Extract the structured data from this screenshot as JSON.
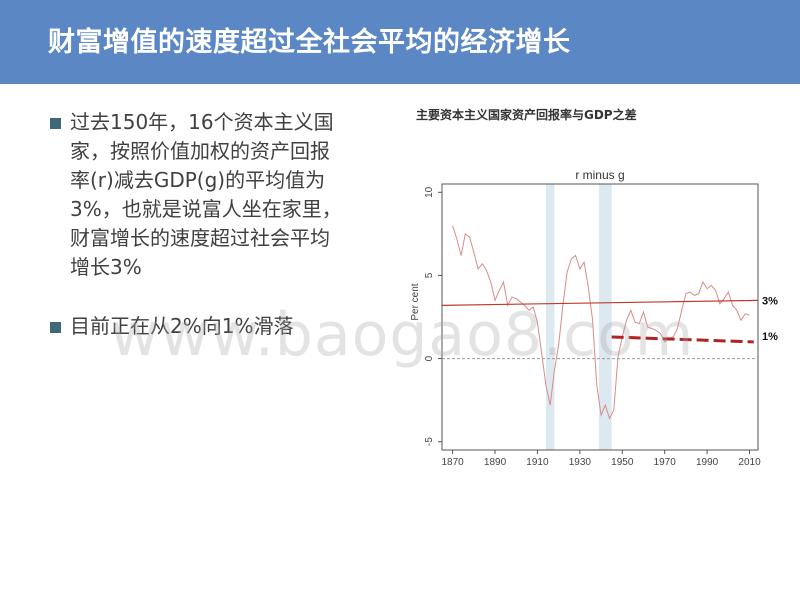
{
  "header": {
    "title": "财富增值的速度超过全社会平均的经济增长"
  },
  "bullets": [
    {
      "text": "过去150年，16个资本主义国\n家，按照价值加权的资产回报\n率(r)减去GDP(g)的平均值为\n3%，也就是说富人坐在家里，\n财富增长的速度超过社会平均\n增长3%"
    },
    {
      "text": "目前正在从2%向1%滑落"
    }
  ],
  "figure_caption": "主要资本主义国家资产回报率与GDP之差",
  "watermark": "www.baogao8.com",
  "colors": {
    "header_bg": "#5b87c5",
    "bullet_marker": "#3f6878",
    "series_line": "#d98b8b",
    "trend_line": "#c0392b",
    "forecast_line": "#b22222",
    "shaded_band": "#dde9f0"
  },
  "chart_data": {
    "type": "line",
    "title": "r minus g",
    "xlabel": "",
    "ylabel": "Per cent",
    "xlim": [
      1865,
      2014
    ],
    "ylim": [
      -5.5,
      10.5
    ],
    "xticks": [
      1870,
      1890,
      1910,
      1930,
      1950,
      1970,
      1990,
      2010
    ],
    "yticks": [
      -5,
      0,
      5,
      10
    ],
    "shaded_periods": [
      [
        1914,
        1918
      ],
      [
        1939,
        1945
      ]
    ],
    "zero_line": "dashed",
    "series": [
      {
        "x": [
          1870,
          1872,
          1874,
          1876,
          1878,
          1880,
          1882,
          1884,
          1886,
          1888,
          1890,
          1892,
          1894,
          1896,
          1898,
          1900,
          1902,
          1904,
          1906,
          1908,
          1910,
          1912,
          1914,
          1916,
          1918,
          1920,
          1922,
          1924,
          1926,
          1928,
          1930,
          1932,
          1934,
          1936,
          1938,
          1940,
          1942,
          1944,
          1946,
          1948,
          1950,
          1952,
          1954,
          1956,
          1958,
          1960,
          1962,
          1964,
          1966,
          1968,
          1970,
          1972,
          1974,
          1976,
          1978,
          1980,
          1982,
          1984,
          1986,
          1988,
          1990,
          1992,
          1994,
          1996,
          1998,
          2000,
          2002,
          2004,
          2006,
          2008,
          2010
        ],
        "values": [
          8.0,
          7.2,
          6.2,
          7.5,
          7.3,
          6.4,
          5.4,
          5.7,
          5.3,
          4.6,
          3.5,
          4.1,
          4.6,
          3.2,
          3.7,
          3.6,
          3.4,
          3.2,
          2.9,
          3.1,
          2.2,
          0.3,
          -1.6,
          -2.8,
          -0.7,
          0.8,
          3.2,
          5.2,
          6.0,
          6.2,
          5.4,
          5.8,
          4.3,
          2.3,
          -1.6,
          -3.4,
          -2.8,
          -3.6,
          -3.1,
          0.1,
          1.3,
          2.3,
          2.9,
          2.2,
          2.1,
          2.8,
          1.9,
          1.8,
          1.7,
          1.5,
          1.0,
          1.2,
          1.3,
          1.8,
          2.9,
          3.9,
          4.0,
          3.8,
          3.9,
          4.6,
          4.2,
          4.4,
          4.1,
          3.3,
          3.6,
          4.0,
          3.2,
          2.9,
          2.3,
          2.7,
          2.6
        ]
      }
    ],
    "annotations": [
      {
        "label": "3%",
        "type": "trend",
        "x": [
          1865,
          2014
        ],
        "y": [
          3.2,
          3.5
        ]
      },
      {
        "label": "1%",
        "type": "forecast",
        "x": [
          1945,
          2012
        ],
        "y": [
          1.3,
          1.0
        ]
      }
    ]
  }
}
